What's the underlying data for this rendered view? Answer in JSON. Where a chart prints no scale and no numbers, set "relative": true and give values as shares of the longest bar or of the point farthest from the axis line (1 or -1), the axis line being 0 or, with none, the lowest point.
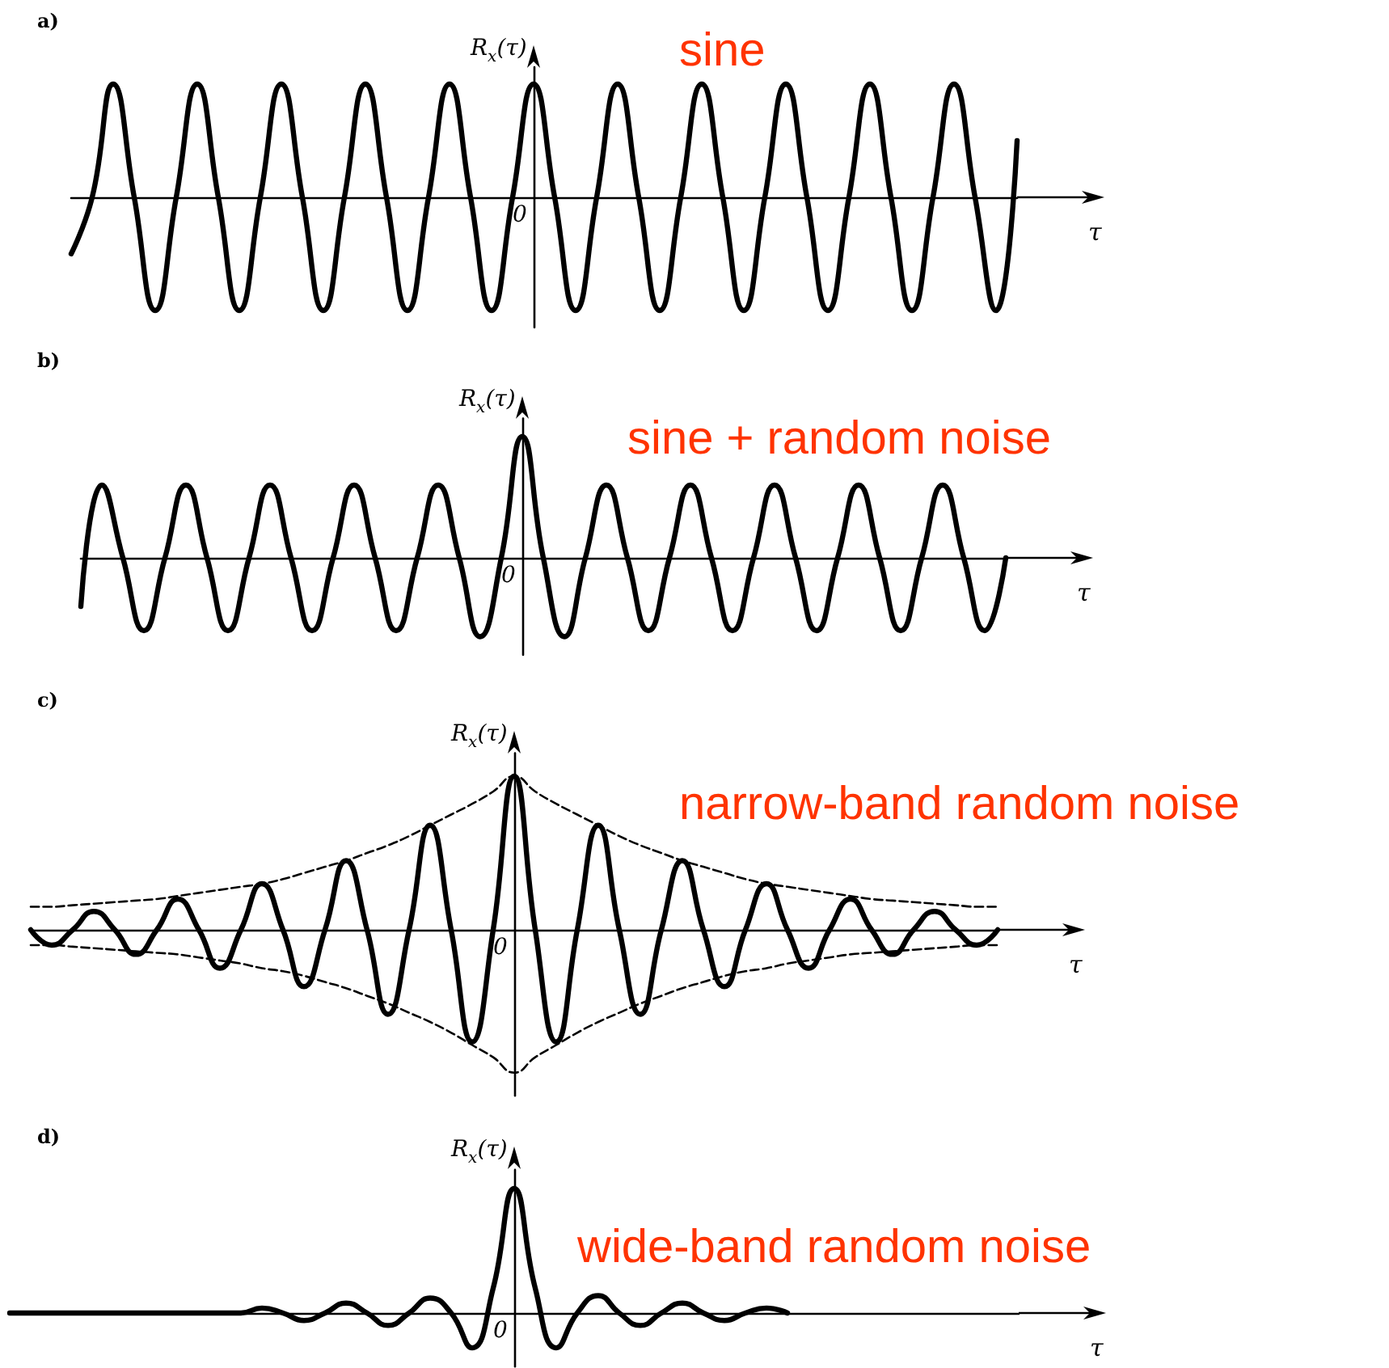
{
  "chart_data": [
    {
      "type": "line",
      "title": "sine",
      "annotations": [
        "a)",
        "0"
      ],
      "ylabel": "R$_{x}$(τ)",
      "xlabel": "τ",
      "relative": true,
      "marker": "none",
      "line_style": "solid",
      "categories": [
        null,
        null,
        null,
        null,
        null,
        null,
        null,
        null,
        null,
        null,
        null,
        null,
        null,
        null,
        null,
        null,
        null,
        null,
        null,
        null,
        null,
        null,
        null,
        null,
        null,
        null,
        null,
        null,
        null,
        null,
        null,
        null,
        null,
        null,
        null,
        null,
        null,
        null,
        null,
        null,
        null,
        null,
        null,
        null,
        null,
        null
      ],
      "series": [
        {
          "color": "#000000",
          "values": [
            -0.5,
            0,
            1,
            0,
            -1,
            0,
            1,
            0,
            -1,
            0,
            1,
            0,
            -1,
            0,
            1,
            0,
            -1,
            0,
            1,
            0,
            -1,
            0,
            1,
            0,
            -1,
            0,
            1,
            0,
            -1,
            0,
            1,
            0,
            -1,
            0,
            1,
            0,
            -1,
            0,
            1,
            0,
            -1,
            0,
            1,
            0,
            -1,
            0.5
          ]
        }
      ]
    },
    {
      "type": "line",
      "title": "sine + random noise",
      "annotations": [
        "b)",
        "0"
      ],
      "ylabel": "R$_{x}$(τ)",
      "xlabel": "τ",
      "relative": true,
      "marker": "none",
      "line_style": "solid",
      "categories": [
        null,
        null,
        null,
        null,
        null,
        null,
        null,
        null,
        null,
        null,
        null,
        null,
        null,
        null,
        null,
        null,
        null,
        null,
        null,
        null,
        null,
        null,
        null,
        null,
        null,
        null,
        null,
        null,
        null,
        null,
        null,
        null,
        null,
        null,
        null,
        null,
        null,
        null,
        null,
        null,
        null,
        null,
        null,
        null,
        null
      ],
      "series": [
        {
          "color": "#000000",
          "values": [
            -0.4,
            0.6,
            0,
            -0.6,
            0,
            0.6,
            0,
            -0.6,
            0,
            0.6,
            0,
            -0.6,
            0,
            0.6,
            0,
            -0.6,
            0,
            0.6,
            0,
            -0.65,
            0,
            1,
            0,
            -0.65,
            0,
            0.6,
            0,
            -0.6,
            0,
            0.6,
            0,
            -0.6,
            0,
            0.6,
            0,
            -0.6,
            0,
            0.6,
            0,
            -0.6,
            0,
            0.6,
            0,
            -0.6,
            0
          ]
        }
      ]
    },
    {
      "type": "line",
      "title": "narrow-band random noise",
      "annotations": [
        "c)",
        "0"
      ],
      "ylabel": "R$_{x}$(τ)",
      "xlabel": "τ",
      "relative": true,
      "marker": "none",
      "line_style": "solid",
      "categories": [
        null,
        null,
        null,
        null,
        null,
        null,
        null,
        null,
        null,
        null,
        null,
        null,
        null,
        null,
        null,
        null,
        null,
        null,
        null,
        null,
        null,
        null,
        null,
        null,
        null,
        null,
        null,
        null,
        null,
        null,
        null,
        null,
        null,
        null,
        null,
        null,
        null,
        null,
        null,
        null,
        null,
        null,
        null,
        null,
        null,
        null,
        null
      ],
      "series": [
        {
          "color": "#000000",
          "values": [
            0,
            -0.1,
            0,
            0.12,
            0,
            -0.16,
            0,
            0.2,
            0,
            -0.25,
            0,
            0.3,
            0,
            -0.37,
            0,
            0.45,
            0,
            -0.55,
            0,
            0.68,
            0,
            -0.73,
            0,
            1,
            0,
            -0.73,
            0,
            0.68,
            0,
            -0.55,
            0,
            0.45,
            0,
            -0.37,
            0,
            0.3,
            0,
            -0.25,
            0,
            0.2,
            0,
            -0.16,
            0,
            0.12,
            0,
            -0.1,
            0
          ]
        },
        {
          "color": "#000000",
          "line_style": "dashed",
          "values": [
            0.15,
            0.15,
            0.16,
            0.17,
            0.18,
            0.19,
            0.2,
            0.22,
            0.24,
            0.26,
            0.28,
            0.3,
            0.33,
            0.37,
            0.41,
            0.45,
            0.5,
            0.55,
            0.61,
            0.68,
            0.75,
            0.82,
            0.9,
            1,
            0.9,
            0.82,
            0.75,
            0.68,
            0.61,
            0.55,
            0.5,
            0.45,
            0.41,
            0.37,
            0.33,
            0.3,
            0.28,
            0.26,
            0.24,
            0.22,
            0.2,
            0.19,
            0.18,
            0.17,
            0.16,
            0.15,
            0.15
          ]
        },
        {
          "color": "#000000",
          "line_style": "dashed",
          "values": [
            -0.1,
            -0.1,
            -0.11,
            -0.12,
            -0.13,
            -0.14,
            -0.15,
            -0.16,
            -0.18,
            -0.2,
            -0.22,
            -0.25,
            -0.27,
            -0.3,
            -0.34,
            -0.38,
            -0.43,
            -0.48,
            -0.54,
            -0.6,
            -0.67,
            -0.75,
            -0.83,
            -0.93,
            -0.83,
            -0.75,
            -0.67,
            -0.6,
            -0.54,
            -0.48,
            -0.43,
            -0.38,
            -0.34,
            -0.3,
            -0.27,
            -0.25,
            -0.22,
            -0.2,
            -0.18,
            -0.16,
            -0.15,
            -0.14,
            -0.13,
            -0.12,
            -0.11,
            -0.1,
            -0.1
          ]
        }
      ]
    },
    {
      "type": "line",
      "title": "wide-band random noise",
      "annotations": [
        "d)",
        "0"
      ],
      "ylabel": "R$_{x}$(τ)",
      "xlabel": "τ",
      "relative": true,
      "marker": "none",
      "line_style": "solid",
      "categories": [
        null,
        null,
        null,
        null,
        null,
        null,
        null,
        null,
        null,
        null,
        null,
        null,
        null,
        null,
        null,
        null,
        null,
        null,
        null,
        null,
        null,
        null,
        null,
        null,
        null,
        null,
        null,
        null,
        null,
        null,
        null,
        null,
        null,
        null,
        null,
        null,
        null,
        null,
        null,
        null,
        null,
        null,
        null,
        null,
        null,
        null,
        null,
        null,
        null
      ],
      "series": [
        {
          "color": "#000000",
          "values": [
            0,
            0,
            0,
            0,
            0,
            0,
            0,
            0,
            0,
            0,
            0,
            0,
            0.04,
            0,
            -0.06,
            0,
            0.08,
            0,
            -0.1,
            0,
            0.12,
            0,
            -0.28,
            0.2,
            1,
            0.2,
            -0.28,
            0,
            0.14,
            0,
            -0.1,
            0,
            0.08,
            0,
            -0.06,
            0,
            0.04,
            0,
            null,
            null,
            null,
            null,
            null,
            null,
            null,
            null,
            null,
            null,
            null
          ]
        }
      ]
    }
  ]
}
